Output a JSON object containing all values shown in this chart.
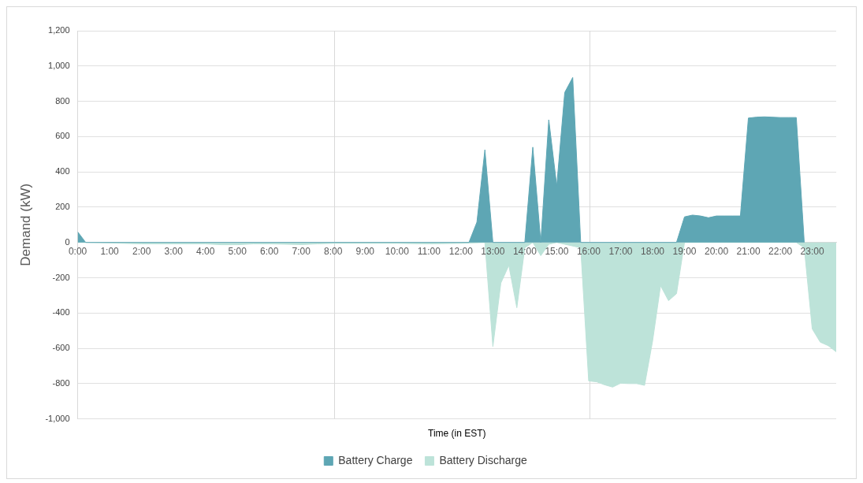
{
  "chart_data": {
    "type": "area",
    "xlabel": "Time (in EST)",
    "ylabel": "Demand (kW)",
    "xlim": [
      0,
      23.75
    ],
    "ylim": [
      -1000,
      1200
    ],
    "xticks": [
      {
        "value": 0,
        "label": "0:00"
      },
      {
        "value": 1,
        "label": "1:00"
      },
      {
        "value": 2,
        "label": "2:00"
      },
      {
        "value": 3,
        "label": "3:00"
      },
      {
        "value": 4,
        "label": "4:00"
      },
      {
        "value": 5,
        "label": "5:00"
      },
      {
        "value": 6,
        "label": "6:00"
      },
      {
        "value": 7,
        "label": "7:00"
      },
      {
        "value": 8,
        "label": "8:00"
      },
      {
        "value": 9,
        "label": "9:00"
      },
      {
        "value": 10,
        "label": "10:00"
      },
      {
        "value": 11,
        "label": "11:00"
      },
      {
        "value": 12,
        "label": "12:00"
      },
      {
        "value": 13,
        "label": "13:00"
      },
      {
        "value": 14,
        "label": "14:00"
      },
      {
        "value": 15,
        "label": "15:00"
      },
      {
        "value": 16,
        "label": "16:00"
      },
      {
        "value": 17,
        "label": "17:00"
      },
      {
        "value": 18,
        "label": "18:00"
      },
      {
        "value": 19,
        "label": "19:00"
      },
      {
        "value": 20,
        "label": "20:00"
      },
      {
        "value": 21,
        "label": "21:00"
      },
      {
        "value": 22,
        "label": "22:00"
      },
      {
        "value": 23,
        "label": "23:00"
      }
    ],
    "yticks": [
      {
        "value": -1000,
        "label": "-1,000"
      },
      -800,
      -600,
      -400,
      -200,
      0,
      200,
      400,
      600,
      800,
      {
        "value": 1000,
        "label": "1,000"
      },
      {
        "value": 1200,
        "label": "1,200"
      }
    ],
    "grid": "y",
    "legend": "bottom",
    "ref_lines": [
      {
        "axis": "x",
        "value": 8,
        "color": "#d9d9d9"
      },
      {
        "axis": "x",
        "value": 16,
        "color": "#d9d9d9"
      }
    ],
    "series": [
      {
        "name": "Battery Charge",
        "color": "#5ea6b4",
        "x": [
          0,
          0.25,
          12.25,
          12.5,
          12.75,
          13,
          14,
          14.25,
          14.5,
          14.75,
          15,
          15.25,
          15.5,
          15.75,
          18.75,
          19,
          19.25,
          19.5,
          19.75,
          20,
          20.25,
          20.5,
          20.75,
          21,
          21.25,
          21.5,
          21.75,
          22,
          22.25,
          22.5,
          22.75
        ],
        "values": [
          60,
          0,
          0,
          115,
          525,
          0,
          0,
          540,
          0,
          695,
          320,
          850,
          935,
          0,
          0,
          145,
          155,
          150,
          140,
          150,
          150,
          150,
          150,
          705,
          710,
          712,
          710,
          708,
          708,
          708,
          0
        ]
      },
      {
        "name": "Battery Discharge",
        "color": "#bde3d9",
        "x": [
          0,
          0.25,
          1,
          2,
          3,
          4,
          4.5,
          5,
          5.5,
          6,
          7,
          7.5,
          8,
          9,
          10,
          11,
          12,
          12.75,
          13,
          13.25,
          13.5,
          13.75,
          14,
          14.25,
          14.5,
          14.75,
          15,
          15.75,
          16,
          16.25,
          16.5,
          16.75,
          17,
          17.25,
          17.5,
          17.75,
          18,
          18.25,
          18.5,
          18.75,
          19,
          22.5,
          22.75,
          23,
          23.25,
          23.5,
          23.75
        ],
        "values": [
          0,
          0,
          -3,
          -8,
          -8,
          -8,
          -13,
          -13,
          -8,
          -8,
          -12,
          -8,
          -5,
          -5,
          -5,
          -8,
          -5,
          0,
          -590,
          -230,
          -130,
          -370,
          -30,
          0,
          -75,
          -10,
          0,
          -30,
          -785,
          -790,
          -807,
          -820,
          -798,
          -800,
          -800,
          -810,
          -560,
          -245,
          -330,
          -290,
          0,
          0,
          -30,
          -490,
          -565,
          -585,
          -620
        ]
      }
    ]
  }
}
